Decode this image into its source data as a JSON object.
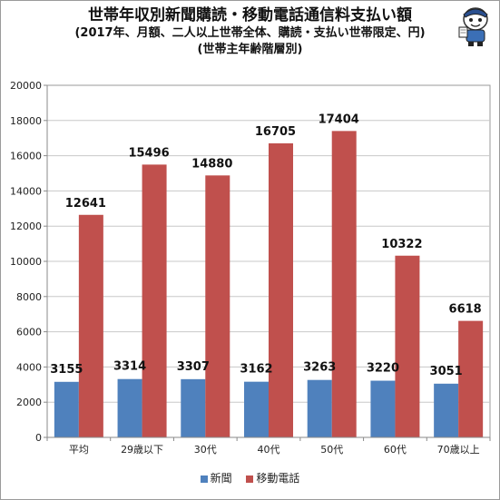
{
  "title": {
    "line1": "世帯年収別新聞購読・移動電話通信料支払い額",
    "line2": "(2017年、月額、二人以上世帯全体、購読・支払い世帯限定、円)",
    "line3": "(世帯主年齢階層別)"
  },
  "colors": {
    "newspaper": "#4f81bd",
    "mobile": "#c0504d"
  },
  "chart_data": {
    "type": "bar",
    "categories": [
      "平均",
      "29歳以下",
      "30代",
      "40代",
      "50代",
      "60代",
      "70歳以上"
    ],
    "series": [
      {
        "name": "新聞",
        "values": [
          3155,
          3314,
          3307,
          3162,
          3263,
          3220,
          3051
        ]
      },
      {
        "name": "移動電話",
        "values": [
          12641,
          15496,
          14880,
          16705,
          17404,
          10322,
          6618
        ]
      }
    ],
    "yticks": [
      0,
      2000,
      4000,
      6000,
      8000,
      10000,
      12000,
      14000,
      16000,
      18000,
      20000
    ],
    "ylim": [
      0,
      20000
    ],
    "grid": true,
    "legend": "bottom"
  }
}
